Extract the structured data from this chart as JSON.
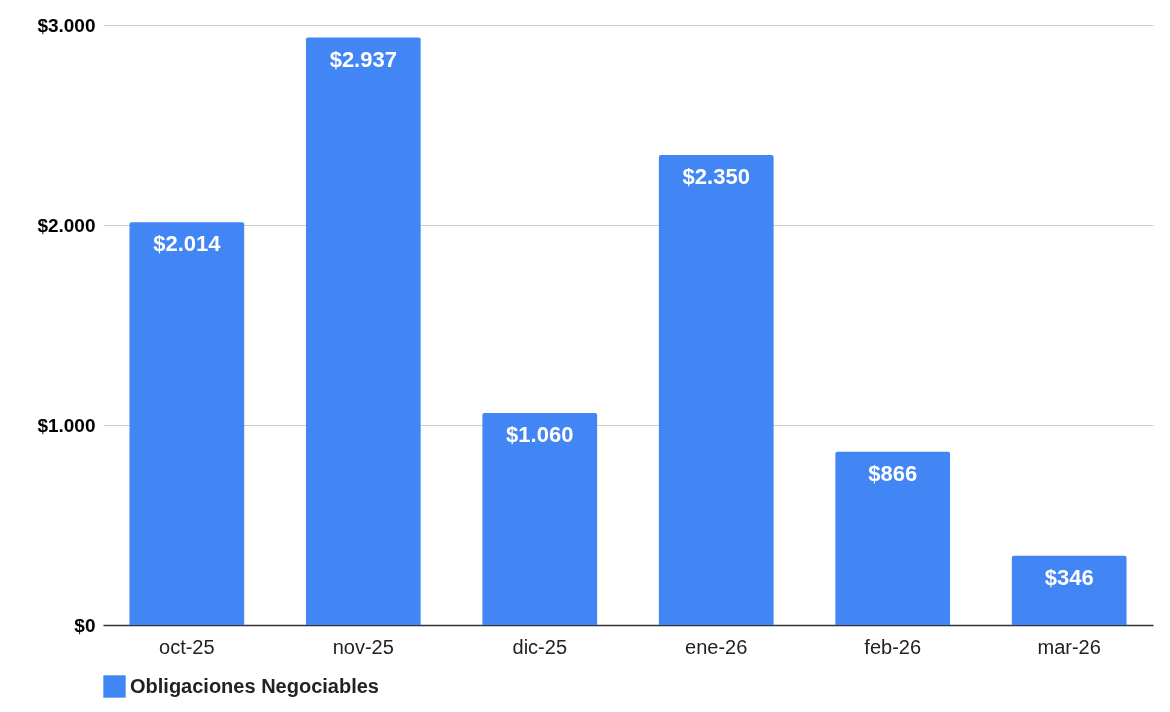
{
  "chart_data": {
    "type": "bar",
    "categories": [
      "oct-25",
      "nov-25",
      "dic-25",
      "ene-26",
      "feb-26",
      "mar-26"
    ],
    "series": [
      {
        "name": "Obligaciones Negociables",
        "color": "#4285f4",
        "values": [
          2014,
          2937,
          1060,
          2350,
          866,
          346
        ],
        "value_labels": [
          "$2.014",
          "$2.937",
          "$1.060",
          "$2.350",
          "$866",
          "$346"
        ]
      }
    ],
    "ylim": [
      0,
      3000
    ],
    "yticks": [
      {
        "value": 0,
        "label": "$0"
      },
      {
        "value": 1000,
        "label": "$1.000"
      },
      {
        "value": 2000,
        "label": "$2.000"
      },
      {
        "value": 3000,
        "label": "$3.000"
      }
    ],
    "grid": "y",
    "legend": "bottom"
  }
}
